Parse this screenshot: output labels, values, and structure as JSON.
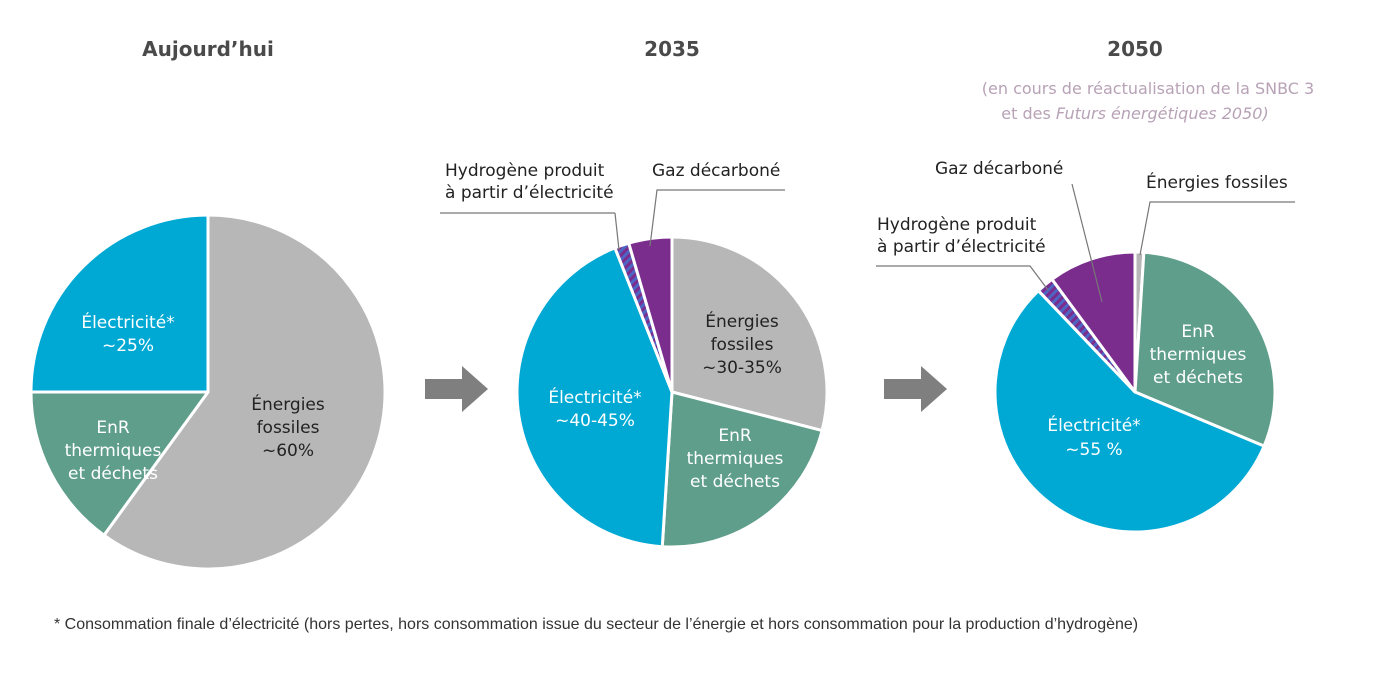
{
  "colors": {
    "electricite": "#00a9d4",
    "enr": "#5f9e8a",
    "fossiles": "#b7b7b7",
    "hydrogene": "#4d66c4",
    "hydrogene_hatch": "#7b2d8e",
    "gaz": "#7b2d8e",
    "arrow": "#7f7f7f"
  },
  "note": {
    "line1": "(en cours de réactualisation de la SNBC 3",
    "line2_prefix": "et des ",
    "line2_italic": "Futurs énergétiques 2050)"
  },
  "footnote": "* Consommation finale d’électricité (hors pertes, hors consommation issue du secteur de l’énergie et hors consommation pour la production d’hydrogène)",
  "chart_data": [
    {
      "type": "pie",
      "title": "Aujourd’hui",
      "slices": [
        {
          "key": "fossiles",
          "value": 60,
          "label": [
            "Énergies",
            "fossiles",
            "~60%"
          ]
        },
        {
          "key": "enr",
          "value": 15,
          "label": [
            "EnR",
            "thermiques",
            "et déchets"
          ]
        },
        {
          "key": "electricite",
          "value": 25,
          "label": [
            "Électricité*",
            "~25%"
          ]
        }
      ]
    },
    {
      "type": "pie",
      "title": "2035",
      "slices": [
        {
          "key": "fossiles",
          "value": 29,
          "label": [
            "Énergies",
            "fossiles",
            "~30-35%"
          ]
        },
        {
          "key": "enr",
          "value": 22,
          "label": [
            "EnR",
            "thermiques",
            "et déchets"
          ]
        },
        {
          "key": "electricite",
          "value": 43,
          "label": [
            "Électricité*",
            "~40-45%"
          ]
        },
        {
          "key": "hydrogene",
          "value": 1.5,
          "label": [
            "Hydrogène produit",
            "à partir d’électricité"
          ]
        },
        {
          "key": "gaz",
          "value": 4.5,
          "label": [
            "Gaz décarboné"
          ]
        }
      ]
    },
    {
      "type": "pie",
      "title": "2050",
      "slices": [
        {
          "key": "fossiles",
          "value": 1,
          "label": [
            "Énergies fossiles"
          ]
        },
        {
          "key": "enr",
          "value": 30,
          "label": [
            "EnR",
            "thermiques",
            "et déchets"
          ]
        },
        {
          "key": "electricite",
          "value": 56,
          "label": [
            "Électricité*",
            "~55 %"
          ]
        },
        {
          "key": "hydrogene",
          "value": 2,
          "label": [
            "Hydrogène produit",
            "à partir d’électricité"
          ]
        },
        {
          "key": "gaz",
          "value": 10,
          "label": [
            "Gaz décarboné"
          ]
        }
      ]
    }
  ]
}
